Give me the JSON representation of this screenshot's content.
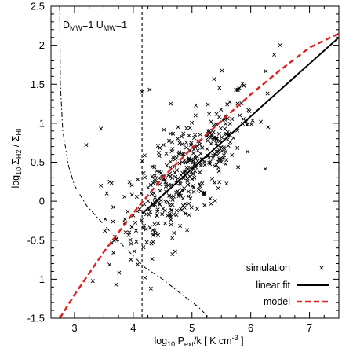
{
  "chart_data": {
    "type": "scatter",
    "title": "",
    "xlabel": {
      "main": "log",
      "sub10": "10",
      "p": " P",
      "sub": "ext",
      "rest": "/k [ K cm",
      "sup": "-3",
      "end": " ]"
    },
    "ylabel": {
      "main": "log",
      "sub10": "10",
      "num": "Σ",
      "numsub": "H2",
      "sep": " / Σ",
      "densub": "HI"
    },
    "xlim": [
      2.6,
      7.5
    ],
    "ylim": [
      -1.5,
      2.5
    ],
    "xticks": [
      3,
      4,
      5,
      6,
      7
    ],
    "yticks": [
      -1.5,
      -1,
      -0.5,
      0,
      0.5,
      1,
      1.5,
      2,
      2.5
    ],
    "ytick_labels": [
      "-1.5",
      "-1",
      "-0.5",
      "0",
      "0.5",
      "1",
      "1.5",
      "2",
      "2.5"
    ],
    "annotation": {
      "d": "D",
      "dsub": "MW",
      "dval": "=1 ",
      "u": "U",
      "usub": "MW",
      "uval": "=1"
    },
    "vline_x": 4.15,
    "legend": {
      "position": "bottom-right",
      "entries": [
        "simulation",
        "linear fit",
        "model"
      ]
    },
    "linear_fit": {
      "x": [
        4.15,
        7.5
      ],
      "y": [
        -0.16,
        2.1
      ]
    },
    "model_curve": {
      "x": [
        2.75,
        3.0,
        3.5,
        4.0,
        4.5,
        5.0,
        5.5,
        6.0,
        6.5,
        7.0,
        7.5
      ],
      "y": [
        -1.5,
        -1.2,
        -0.65,
        -0.15,
        0.3,
        0.68,
        1.03,
        1.37,
        1.68,
        1.97,
        2.15
      ]
    },
    "dashdot_curve": {
      "x": [
        2.75,
        2.76,
        2.8,
        2.9,
        3.0,
        3.2,
        3.5,
        3.8,
        4.0,
        4.2,
        4.5,
        4.8,
        5.1,
        5.3
      ],
      "y": [
        2.5,
        1.5,
        0.9,
        0.45,
        0.2,
        -0.05,
        -0.3,
        -0.55,
        -0.7,
        -0.85,
        -1.0,
        -1.18,
        -1.35,
        -1.5
      ]
    },
    "colors": {
      "axes": "#000000",
      "fit": "#000000",
      "model": "#e02020",
      "points": "#000000"
    }
  }
}
